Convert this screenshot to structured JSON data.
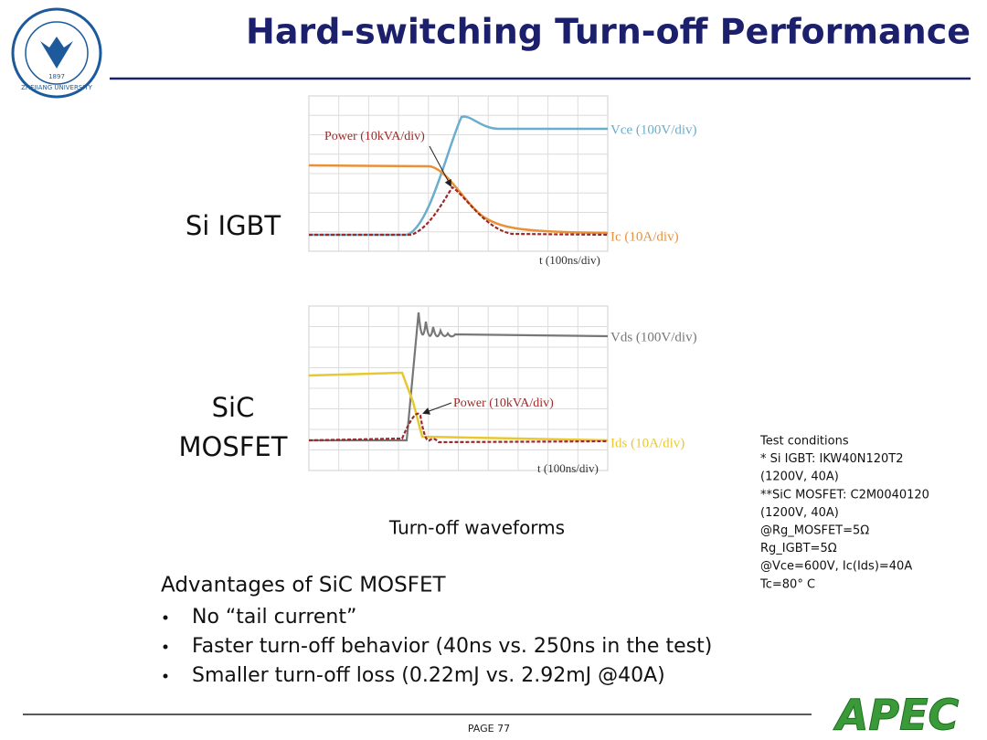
{
  "header": {
    "title": "Hard-switching Turn-off Performance",
    "logo": {
      "name": "ZHEJIANG UNIVERSITY",
      "year": "1897"
    }
  },
  "waveforms": [
    {
      "label_lines": [
        "Si IGBT"
      ],
      "voltage_label": "Vce (100V/div)",
      "power_label": "Power (10kVA/div)",
      "current_label": "Ic (10A/div)",
      "time_label": "t (100ns/div)"
    },
    {
      "label_lines": [
        "SiC",
        "MOSFET"
      ],
      "voltage_label": "Vds (100V/div)",
      "power_label": "Power (10kVA/div)",
      "current_label": "Ids (10A/div)",
      "time_label": "t (100ns/div)"
    }
  ],
  "waveforms_caption": "Turn-off waveforms",
  "test_conditions": [
    "Test conditions",
    "* Si IGBT: IKW40N120T2",
    "(1200V, 40A)",
    "**SiC MOSFET: C2M0040120",
    "(1200V, 40A)",
    "@Rg_MOSFET=5Ω",
    "Rg_IGBT=5Ω",
    "@Vce=600V, Ic(Ids)=40A",
    "Tc=80° C"
  ],
  "advantages": {
    "heading": "Advantages of SiC MOSFET",
    "bullets": [
      "No “tail current”",
      "Faster turn-off behavior (40ns vs. 250ns in the test)",
      "Smaller turn-off loss (0.22mJ vs. 2.92mJ @40A)"
    ]
  },
  "footer": {
    "page": "PAGE 77",
    "logo": "APEC"
  }
}
